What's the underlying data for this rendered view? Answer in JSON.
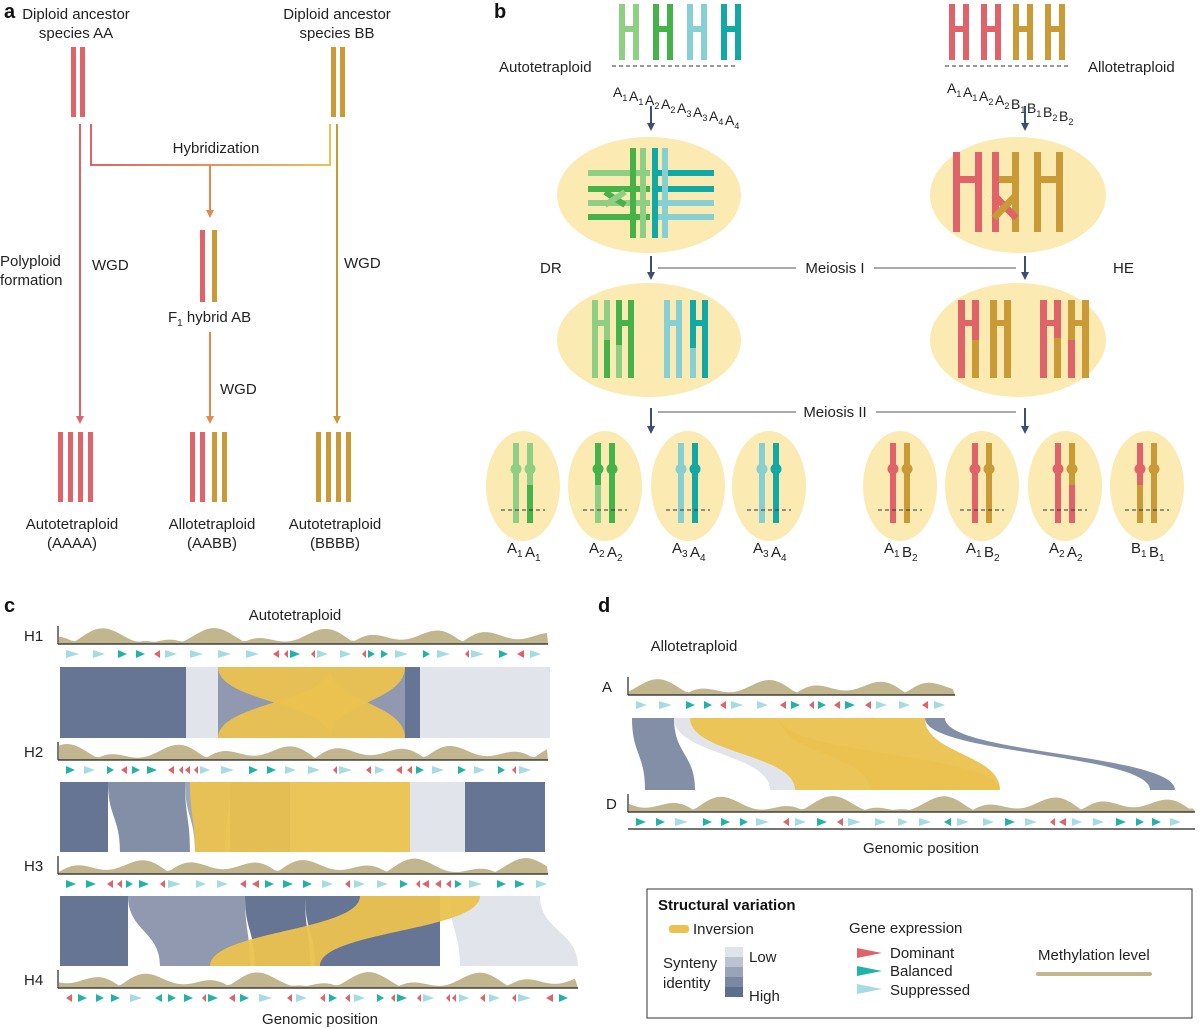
{
  "colors": {
    "A": "#e0636a",
    "B": "#c99a35",
    "hybrid_arrow": "#e3884f",
    "A1": "#8fcf84",
    "A2": "#45b24a",
    "A3": "#86d0d3",
    "A4": "#11a8a6",
    "cell": "#fbeab1",
    "inversion": "#ebc24f",
    "methylation": "#c2b68e",
    "syn_high": "#5e6e8e",
    "syn_low": "#d8dde6",
    "dominant": "#e0636a",
    "balanced": "#21b3a8",
    "suppressed": "#a5dce3",
    "arrow_dark": "#3d4f70"
  },
  "panel_a": {
    "letter": "a",
    "ancestor_aa": [
      "Diploid ancestor",
      "species AA"
    ],
    "ancestor_bb": [
      "Diploid ancestor",
      "species BB"
    ],
    "hybridization": "Hybridization",
    "polyploid_formation": [
      "Polyploid",
      "formation"
    ],
    "wgd": "WGD",
    "f1_hybrid": {
      "prefix": "F",
      "sub": "1",
      "suffix": " hybrid AB"
    },
    "outcomes": [
      {
        "label": "Autotetraploid",
        "genome": "(AAAA)"
      },
      {
        "label": "Allotetraploid",
        "genome": "(AABB)"
      },
      {
        "label": "Autotetraploid",
        "genome": "(BBBB)"
      }
    ]
  },
  "panel_b": {
    "letter": "b",
    "left_title": "Autotetraploid",
    "right_title": "Allotetraploid",
    "left_chrom_labels": [
      [
        "A",
        "1"
      ],
      [
        "A",
        "1"
      ],
      [
        "A",
        "2"
      ],
      [
        "A",
        "2"
      ],
      [
        "A",
        "3"
      ],
      [
        "A",
        "3"
      ],
      [
        "A",
        "4"
      ],
      [
        "A",
        "4"
      ]
    ],
    "right_chrom_labels": [
      [
        "A",
        "1"
      ],
      [
        "A",
        "1"
      ],
      [
        "A",
        "2"
      ],
      [
        "A",
        "2"
      ],
      [
        "B",
        "1"
      ],
      [
        "B",
        "1"
      ],
      [
        "B",
        "2"
      ],
      [
        "B",
        "2"
      ]
    ],
    "meiosis_1": "Meiosis I",
    "meiosis_2": "Meiosis II",
    "dr": "DR",
    "he": "HE",
    "gametes": [
      [
        [
          "A",
          "1"
        ],
        [
          "A",
          "1"
        ]
      ],
      [
        [
          "A",
          "2"
        ],
        [
          "A",
          "2"
        ]
      ],
      [
        [
          "A",
          "3"
        ],
        [
          "A",
          "4"
        ]
      ],
      [
        [
          "A",
          "3"
        ],
        [
          "A",
          "4"
        ]
      ],
      [
        [
          "A",
          "1"
        ],
        [
          "B",
          "2"
        ]
      ],
      [
        [
          "A",
          "1"
        ],
        [
          "B",
          "2"
        ]
      ],
      [
        [
          "A",
          "2"
        ],
        [
          "A",
          "2"
        ]
      ],
      [
        [
          "B",
          "1"
        ],
        [
          "B",
          "1"
        ]
      ]
    ]
  },
  "panel_c": {
    "letter": "c",
    "title": "Autotetraploid",
    "haplotypes": [
      "H1",
      "H2",
      "H3",
      "H4"
    ],
    "xlabel": "Genomic position"
  },
  "panel_d": {
    "letter": "d",
    "title": "Allotetraploid",
    "subgenomes": [
      "A",
      "D"
    ],
    "xlabel": "Genomic position"
  },
  "legend": {
    "sv_title": "Structural variation",
    "inversion": "Inversion",
    "synteny_label": [
      "Synteny",
      "identity"
    ],
    "low": "Low",
    "high": "High",
    "gene_expr_title": "Gene expression",
    "dominant": "Dominant",
    "balanced": "Balanced",
    "suppressed": "Suppressed",
    "methylation": "Methylation level"
  }
}
